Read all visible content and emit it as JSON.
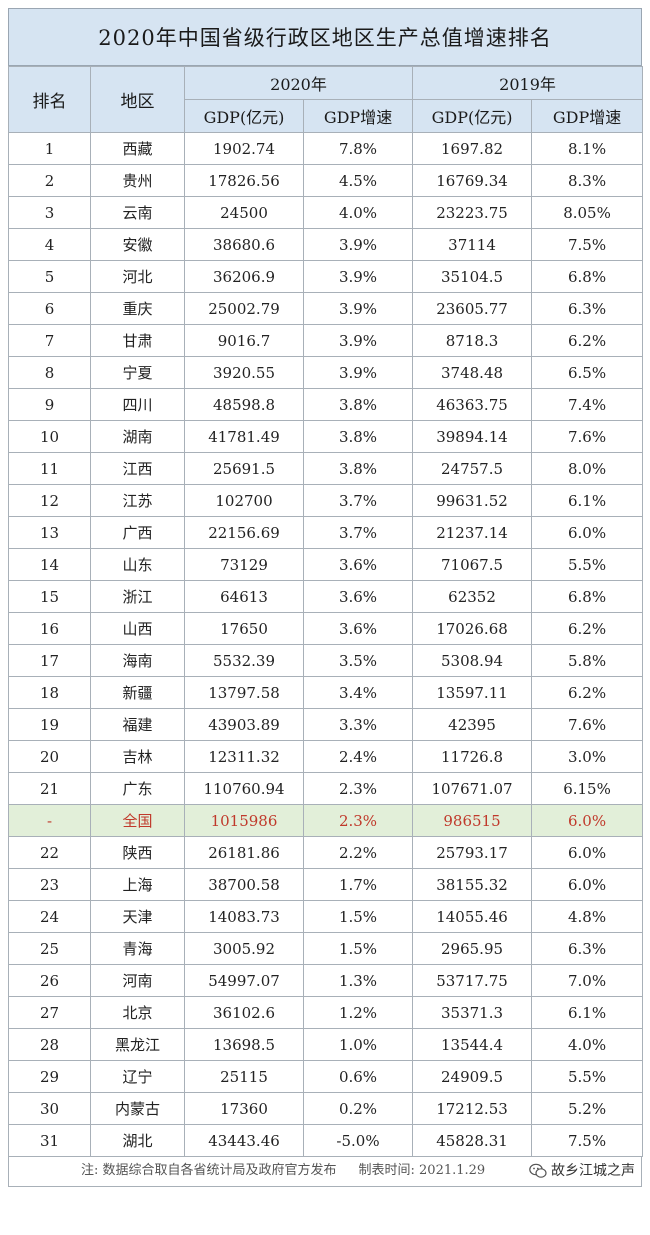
{
  "title": "2020年中国省级行政区地区生产总值增速排名",
  "headers": {
    "rank": "排名",
    "region": "地区",
    "year_2020": "2020年",
    "year_2019": "2019年",
    "gdp": "GDP(亿元)",
    "growth": "GDP增速"
  },
  "rows": [
    {
      "rank": "1",
      "region": "西藏",
      "gdp2020": "1902.74",
      "g2020": "7.8%",
      "gdp2019": "1697.82",
      "g2019": "8.1%"
    },
    {
      "rank": "2",
      "region": "贵州",
      "gdp2020": "17826.56",
      "g2020": "4.5%",
      "gdp2019": "16769.34",
      "g2019": "8.3%"
    },
    {
      "rank": "3",
      "region": "云南",
      "gdp2020": "24500",
      "g2020": "4.0%",
      "gdp2019": "23223.75",
      "g2019": "8.05%"
    },
    {
      "rank": "4",
      "region": "安徽",
      "gdp2020": "38680.6",
      "g2020": "3.9%",
      "gdp2019": "37114",
      "g2019": "7.5%"
    },
    {
      "rank": "5",
      "region": "河北",
      "gdp2020": "36206.9",
      "g2020": "3.9%",
      "gdp2019": "35104.5",
      "g2019": "6.8%"
    },
    {
      "rank": "6",
      "region": "重庆",
      "gdp2020": "25002.79",
      "g2020": "3.9%",
      "gdp2019": "23605.77",
      "g2019": "6.3%"
    },
    {
      "rank": "7",
      "region": "甘肃",
      "gdp2020": "9016.7",
      "g2020": "3.9%",
      "gdp2019": "8718.3",
      "g2019": "6.2%"
    },
    {
      "rank": "8",
      "region": "宁夏",
      "gdp2020": "3920.55",
      "g2020": "3.9%",
      "gdp2019": "3748.48",
      "g2019": "6.5%"
    },
    {
      "rank": "9",
      "region": "四川",
      "gdp2020": "48598.8",
      "g2020": "3.8%",
      "gdp2019": "46363.75",
      "g2019": "7.4%"
    },
    {
      "rank": "10",
      "region": "湖南",
      "gdp2020": "41781.49",
      "g2020": "3.8%",
      "gdp2019": "39894.14",
      "g2019": "7.6%"
    },
    {
      "rank": "11",
      "region": "江西",
      "gdp2020": "25691.5",
      "g2020": "3.8%",
      "gdp2019": "24757.5",
      "g2019": "8.0%"
    },
    {
      "rank": "12",
      "region": "江苏",
      "gdp2020": "102700",
      "g2020": "3.7%",
      "gdp2019": "99631.52",
      "g2019": "6.1%"
    },
    {
      "rank": "13",
      "region": "广西",
      "gdp2020": "22156.69",
      "g2020": "3.7%",
      "gdp2019": "21237.14",
      "g2019": "6.0%"
    },
    {
      "rank": "14",
      "region": "山东",
      "gdp2020": "73129",
      "g2020": "3.6%",
      "gdp2019": "71067.5",
      "g2019": "5.5%"
    },
    {
      "rank": "15",
      "region": "浙江",
      "gdp2020": "64613",
      "g2020": "3.6%",
      "gdp2019": "62352",
      "g2019": "6.8%"
    },
    {
      "rank": "16",
      "region": "山西",
      "gdp2020": "17650",
      "g2020": "3.6%",
      "gdp2019": "17026.68",
      "g2019": "6.2%"
    },
    {
      "rank": "17",
      "region": "海南",
      "gdp2020": "5532.39",
      "g2020": "3.5%",
      "gdp2019": "5308.94",
      "g2019": "5.8%"
    },
    {
      "rank": "18",
      "region": "新疆",
      "gdp2020": "13797.58",
      "g2020": "3.4%",
      "gdp2019": "13597.11",
      "g2019": "6.2%"
    },
    {
      "rank": "19",
      "region": "福建",
      "gdp2020": "43903.89",
      "g2020": "3.3%",
      "gdp2019": "42395",
      "g2019": "7.6%"
    },
    {
      "rank": "20",
      "region": "吉林",
      "gdp2020": "12311.32",
      "g2020": "2.4%",
      "gdp2019": "11726.8",
      "g2019": "3.0%"
    },
    {
      "rank": "21",
      "region": "广东",
      "gdp2020": "110760.94",
      "g2020": "2.3%",
      "gdp2019": "107671.07",
      "g2019": "6.15%"
    },
    {
      "rank": "-",
      "region": "全国",
      "gdp2020": "1015986",
      "g2020": "2.3%",
      "gdp2019": "986515",
      "g2019": "6.0%",
      "national": true
    },
    {
      "rank": "22",
      "region": "陕西",
      "gdp2020": "26181.86",
      "g2020": "2.2%",
      "gdp2019": "25793.17",
      "g2019": "6.0%"
    },
    {
      "rank": "23",
      "region": "上海",
      "gdp2020": "38700.58",
      "g2020": "1.7%",
      "gdp2019": "38155.32",
      "g2019": "6.0%"
    },
    {
      "rank": "24",
      "region": "天津",
      "gdp2020": "14083.73",
      "g2020": "1.5%",
      "gdp2019": "14055.46",
      "g2019": "4.8%"
    },
    {
      "rank": "25",
      "region": "青海",
      "gdp2020": "3005.92",
      "g2020": "1.5%",
      "gdp2019": "2965.95",
      "g2019": "6.3%"
    },
    {
      "rank": "26",
      "region": "河南",
      "gdp2020": "54997.07",
      "g2020": "1.3%",
      "gdp2019": "53717.75",
      "g2019": "7.0%"
    },
    {
      "rank": "27",
      "region": "北京",
      "gdp2020": "36102.6",
      "g2020": "1.2%",
      "gdp2019": "35371.3",
      "g2019": "6.1%"
    },
    {
      "rank": "28",
      "region": "黑龙江",
      "gdp2020": "13698.5",
      "g2020": "1.0%",
      "gdp2019": "13544.4",
      "g2019": "4.0%"
    },
    {
      "rank": "29",
      "region": "辽宁",
      "gdp2020": "25115",
      "g2020": "0.6%",
      "gdp2019": "24909.5",
      "g2019": "5.5%"
    },
    {
      "rank": "30",
      "region": "内蒙古",
      "gdp2020": "17360",
      "g2020": "0.2%",
      "gdp2019": "17212.53",
      "g2019": "5.2%"
    },
    {
      "rank": "31",
      "region": "湖北",
      "gdp2020": "43443.46",
      "g2020": "-5.0%",
      "gdp2019": "45828.31",
      "g2019": "7.5%"
    }
  ],
  "footer": {
    "note": "注: 数据综合取自各省统计局及政府官方发布",
    "made_time": "制表时间: 2021.1.29",
    "brand": "故乡江城之声",
    "brand_icon": "wechat-icon"
  },
  "colors": {
    "header_bg": "#d6e4f2",
    "national_row_bg": "#e2efd9",
    "national_row_text": "#c0392b"
  }
}
